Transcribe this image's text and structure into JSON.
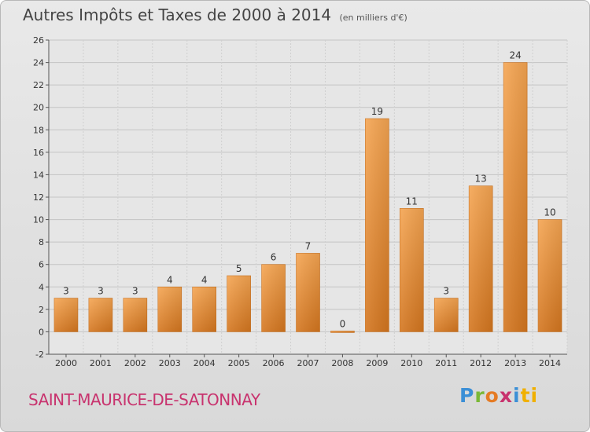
{
  "title": {
    "main": "Autres Impôts et Taxes de 2000 à 2014",
    "unit": "(en milliers d'€)"
  },
  "commune": "SAINT-MAURICE-DE-SATONNAY",
  "brand": {
    "name": "Proxiti",
    "letters": [
      "P",
      "r",
      "o",
      "x",
      "i",
      "ti"
    ]
  },
  "colors": {
    "bar_light": "#f5a552",
    "bar_dark": "#d4761f",
    "commune": "#c8336e"
  },
  "chart_data": {
    "type": "bar",
    "categories": [
      "2000",
      "2001",
      "2002",
      "2003",
      "2004",
      "2005",
      "2006",
      "2007",
      "2008",
      "2009",
      "2010",
      "2011",
      "2012",
      "2013",
      "2014"
    ],
    "values": [
      3,
      3,
      3,
      4,
      4,
      5,
      6,
      7,
      0,
      19,
      11,
      3,
      13,
      24,
      10
    ],
    "title": "Autres Impôts et Taxes de 2000 à 2014",
    "ylim": [
      -2,
      26
    ],
    "yticks": [
      -2,
      0,
      2,
      4,
      6,
      8,
      10,
      12,
      14,
      16,
      18,
      20,
      22,
      24,
      26
    ],
    "grid": true,
    "data_labels": true
  }
}
